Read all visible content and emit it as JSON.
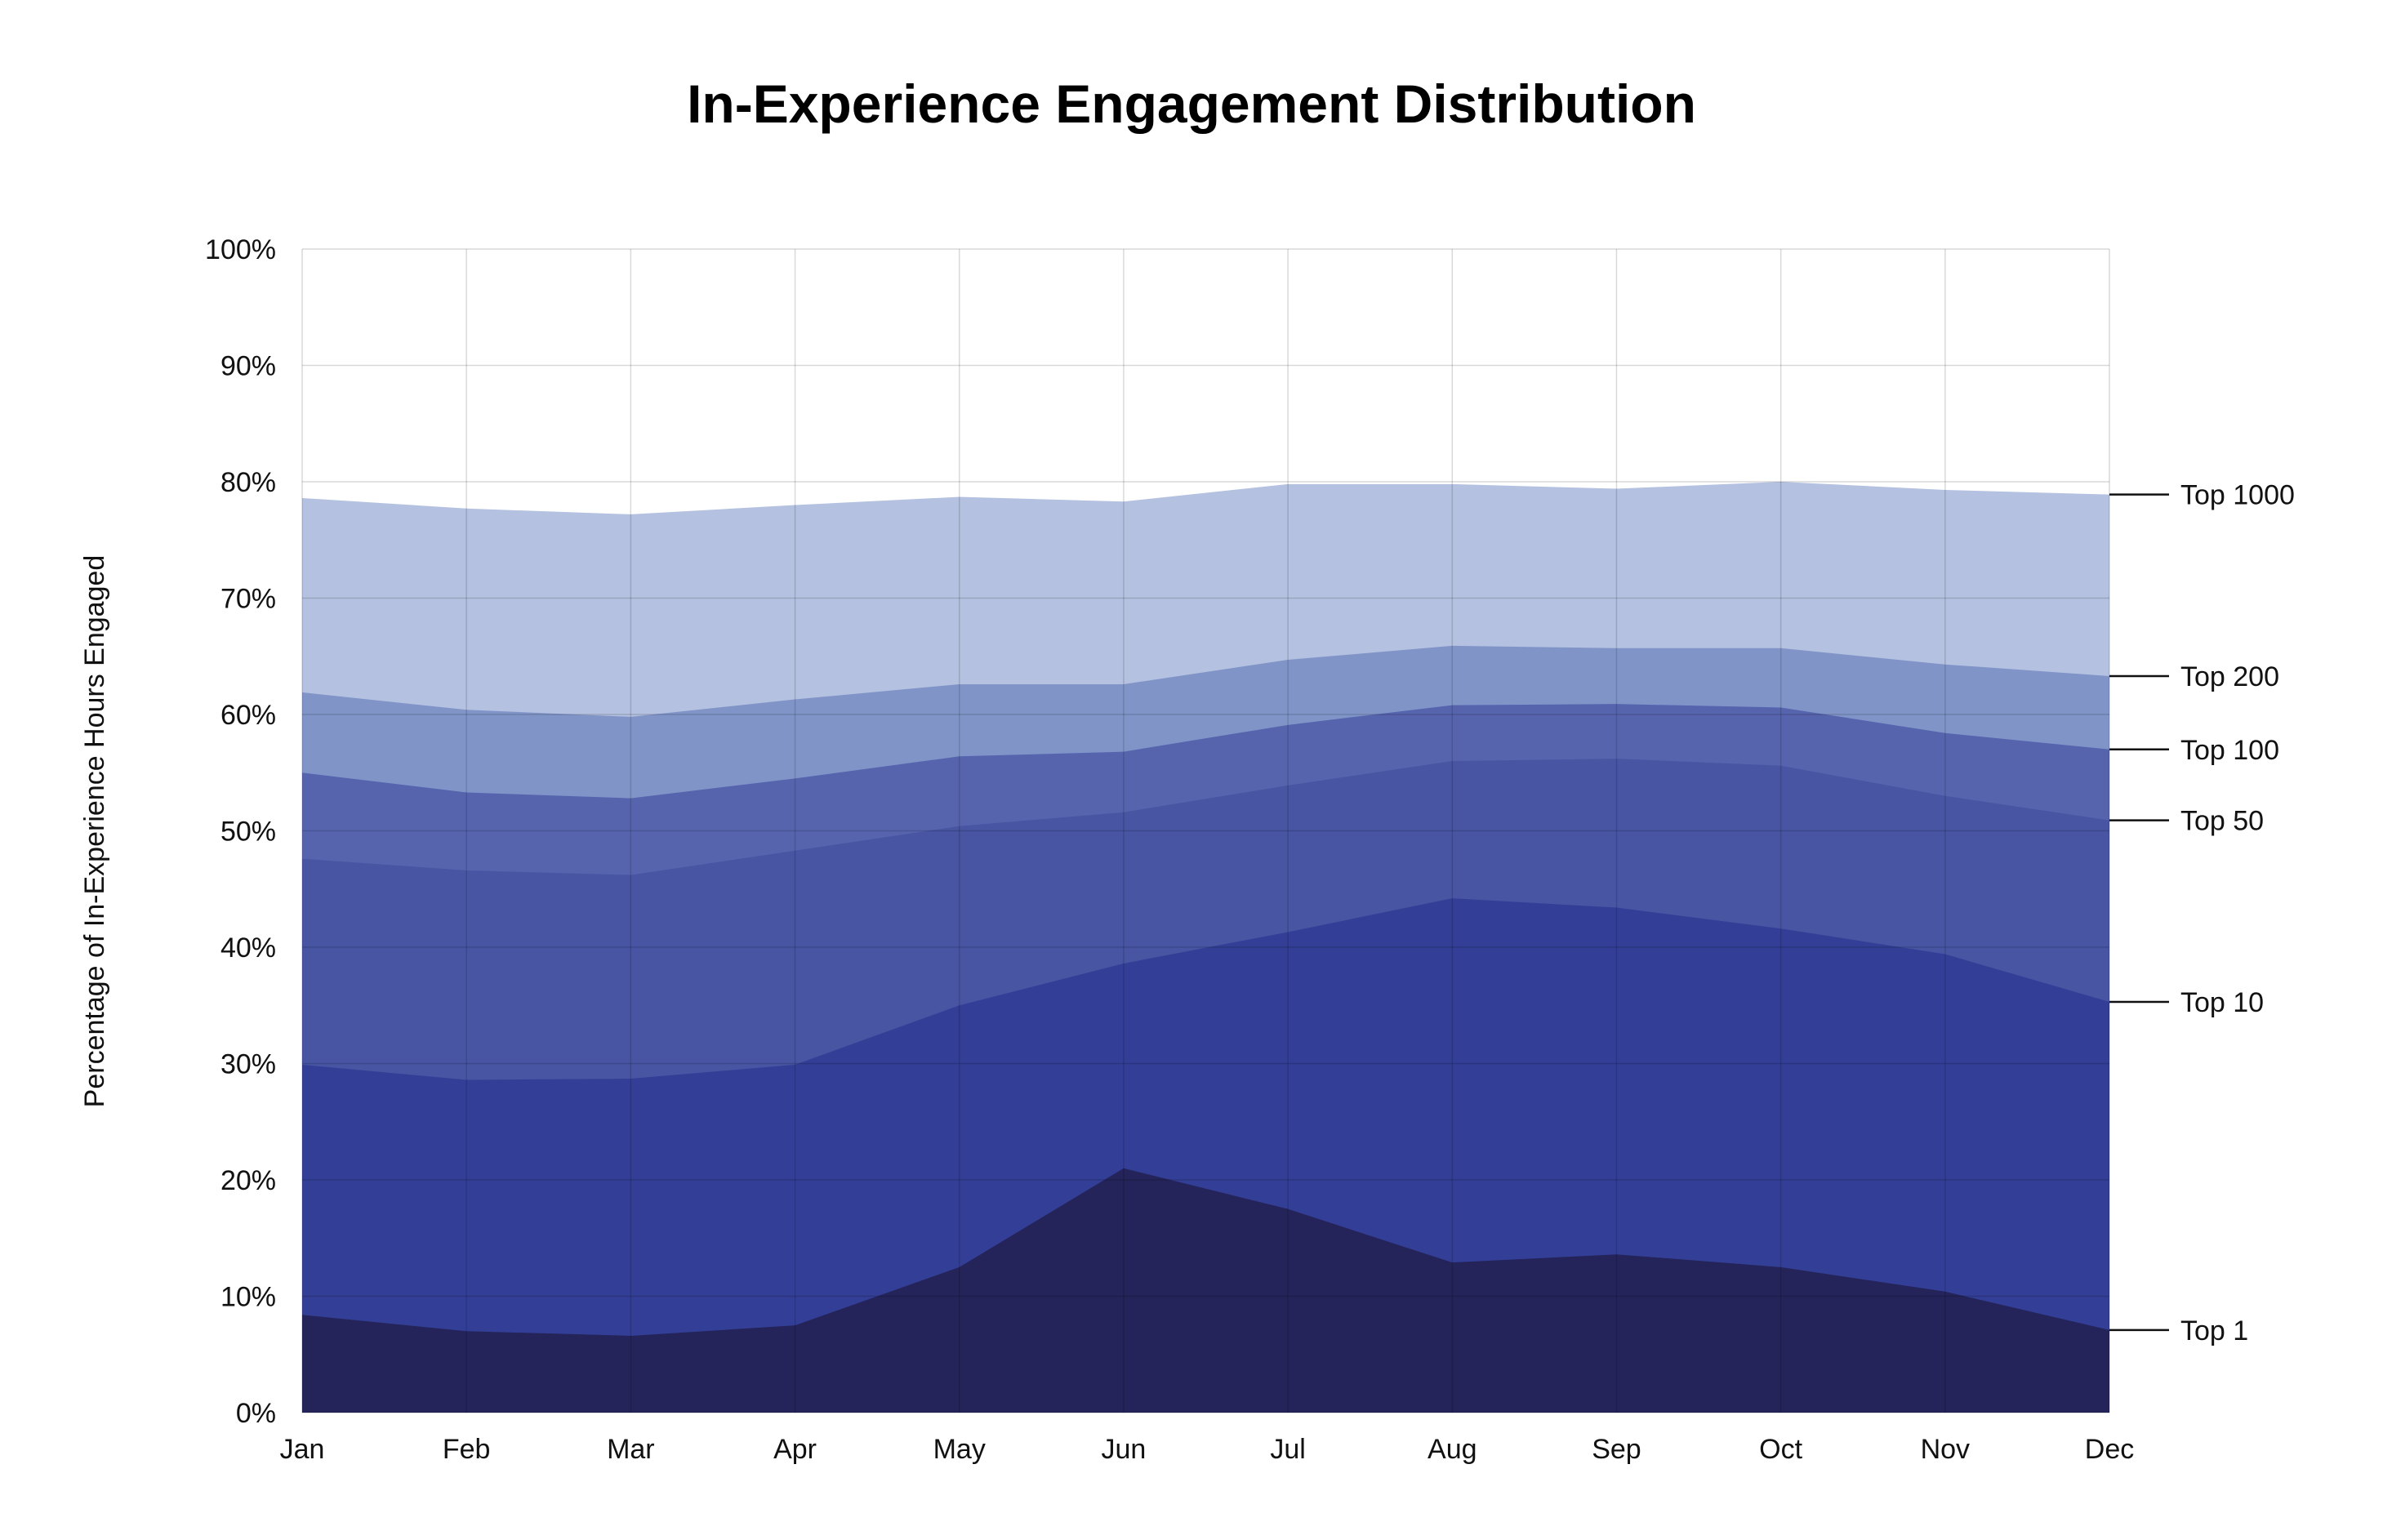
{
  "chart_data": {
    "type": "area",
    "title": "In-Experience Engagement Distribution",
    "xlabel": "",
    "ylabel": "Percentage of In-Experience Hours Engaged",
    "ylim": [
      0,
      100
    ],
    "y_ticks": [
      "0%",
      "10%",
      "20%",
      "30%",
      "40%",
      "50%",
      "60%",
      "70%",
      "80%",
      "90%",
      "100%"
    ],
    "grid": true,
    "legend": "right, inline labels",
    "categories": [
      "Jan",
      "Feb",
      "Mar",
      "Apr",
      "May",
      "Jun",
      "Jul",
      "Aug",
      "Sep",
      "Oct",
      "Nov",
      "Dec"
    ],
    "series": [
      {
        "name": "Top 1000",
        "color": "#b4c1e0",
        "values": [
          78.6,
          77.7,
          77.2,
          78.0,
          78.7,
          78.3,
          79.8,
          79.8,
          79.4,
          80.0,
          79.3,
          78.9
        ]
      },
      {
        "name": "Top 200",
        "color": "#8094c8",
        "values": [
          61.9,
          60.4,
          59.8,
          61.3,
          62.6,
          62.6,
          64.7,
          65.9,
          65.7,
          65.7,
          64.3,
          63.3
        ]
      },
      {
        "name": "Top 100",
        "color": "#5664ae",
        "values": [
          55.0,
          53.3,
          52.8,
          54.5,
          56.4,
          56.8,
          59.1,
          60.8,
          60.9,
          60.6,
          58.4,
          57.0
        ]
      },
      {
        "name": "Top 50",
        "color": "#4755a3",
        "values": [
          47.6,
          46.6,
          46.2,
          48.3,
          50.4,
          51.6,
          53.9,
          56.0,
          56.2,
          55.6,
          53.0,
          50.9
        ]
      },
      {
        "name": "Top 10",
        "color": "#333f96",
        "values": [
          29.9,
          28.6,
          28.7,
          29.9,
          35.0,
          38.6,
          41.3,
          44.2,
          43.4,
          41.6,
          39.4,
          35.3
        ]
      },
      {
        "name": "Top 1",
        "color": "#24245a",
        "values": [
          8.4,
          7.0,
          6.6,
          7.5,
          12.5,
          21.0,
          17.5,
          12.9,
          13.6,
          12.5,
          10.4,
          7.1
        ]
      }
    ]
  }
}
